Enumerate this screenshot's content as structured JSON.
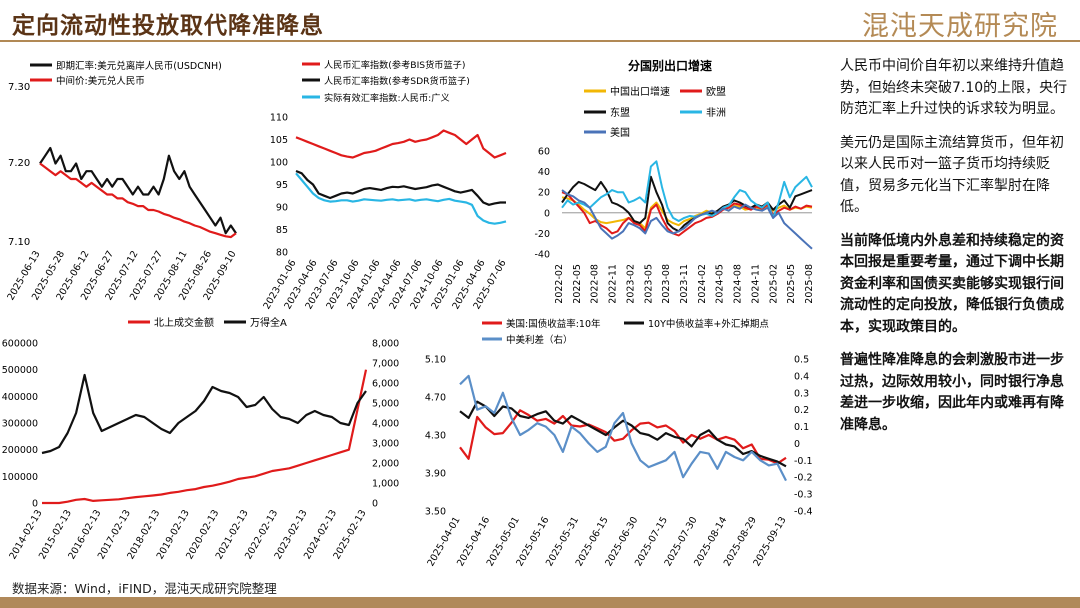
{
  "page": {
    "title": "定向流动性投放取代降准降息",
    "logo": "混沌天成研究院",
    "source": "数据来源：Wind，iFIND，混沌天成研究院整理",
    "paragraphs": [
      "人民币中间价自年初以来维持升值趋势，但始终未突破7.10的上限，央行防范汇率上升过快的诉求较为明显。",
      "美元仍是国际主流结算货币，但年初以来人民币对一篮子货币均持续贬值，贸易多元化当下汇率掣肘在降低。",
      "当前降低境内外息差和持续稳定的资本回报是重要考量，通过下调中长期资金利率和国债买卖能够实现银行间流动性的定向投放，降低银行负债成本，实现政策目的。",
      "普遍性降准降息的会刺激股市进一步过热，边际效用较小，同时银行净息差进一步收缩，因此年内或难再有降准降息。"
    ]
  },
  "chart_data": [
    {
      "id": "fx",
      "type": "line",
      "title": "",
      "legend": [
        "即期汇率:美元兑离岸人民币(USDCNH)",
        "中间价:美元兑人民币"
      ],
      "y_ticks": [
        "7.30",
        "7.20",
        "7.10"
      ],
      "ylim": [
        7.1,
        7.3
      ],
      "x_ticks": [
        "2025-06-13",
        "2025-05-28",
        "2025-06-12",
        "2025-06-27",
        "2025-07-12",
        "2025-07-27",
        "2025-08-11",
        "2025-08-26",
        "2025-09-10"
      ],
      "series": [
        {
          "name": "即期汇率:美元兑离岸人民币(USDCNH)",
          "color": "#111111",
          "values": [
            7.2,
            7.21,
            7.22,
            7.2,
            7.21,
            7.19,
            7.19,
            7.2,
            7.18,
            7.19,
            7.19,
            7.18,
            7.17,
            7.18,
            7.17,
            7.18,
            7.18,
            7.17,
            7.16,
            7.17,
            7.16,
            7.16,
            7.17,
            7.16,
            7.18,
            7.21,
            7.19,
            7.18,
            7.19,
            7.17,
            7.16,
            7.15,
            7.14,
            7.13,
            7.12,
            7.13,
            7.11,
            7.12,
            7.11
          ]
        },
        {
          "name": "中间价:美元兑人民币",
          "color": "#e01b1b",
          "values": [
            7.2,
            7.195,
            7.19,
            7.185,
            7.19,
            7.185,
            7.18,
            7.18,
            7.175,
            7.17,
            7.175,
            7.17,
            7.165,
            7.16,
            7.16,
            7.155,
            7.155,
            7.15,
            7.148,
            7.145,
            7.145,
            7.14,
            7.14,
            7.138,
            7.135,
            7.133,
            7.13,
            7.128,
            7.125,
            7.123,
            7.12,
            7.118,
            7.115,
            7.112,
            7.11,
            7.108,
            7.106,
            7.105,
            7.11
          ]
        }
      ]
    },
    {
      "id": "rmb-index",
      "type": "line",
      "title": "",
      "legend": [
        "人民币汇率指数(参考BIS货币篮子)",
        "人民币汇率指数(参考SDR货币篮子)",
        "实际有效汇率指数:人民币:广义"
      ],
      "y_ticks": [
        "110",
        "105",
        "100",
        "95",
        "90",
        "85",
        "80"
      ],
      "ylim": [
        80,
        110
      ],
      "x_ticks": [
        "2023-01-06",
        "2023-04-06",
        "2023-07-06",
        "2023-10-06",
        "2024-01-06",
        "2024-04-06",
        "2024-07-06",
        "2024-10-06",
        "2025-01-06",
        "2025-04-06",
        "2025-07-06"
      ],
      "series": [
        {
          "name": "人民币汇率指数(参考BIS货币篮子)",
          "color": "#e01b1b",
          "values": [
            105.5,
            105,
            104.5,
            104,
            103.5,
            103,
            102.5,
            102,
            101.5,
            101.2,
            101,
            101.5,
            102,
            102.2,
            102.5,
            103,
            103.5,
            104,
            104.2,
            104.5,
            105,
            104.5,
            104.8,
            105,
            105.5,
            106,
            107,
            106.5,
            106,
            105,
            104,
            105,
            106,
            103,
            102,
            101,
            101.5,
            102
          ]
        },
        {
          "name": "人民币汇率指数(参考SDR货币篮子)",
          "color": "#111111",
          "values": [
            98,
            97.5,
            96,
            95,
            93,
            92.5,
            92,
            92.5,
            93,
            93.2,
            93,
            93.5,
            94,
            94.2,
            94,
            93.8,
            94.2,
            94.5,
            94.4,
            94.6,
            94.3,
            94,
            94.2,
            94.4,
            94.8,
            95,
            94.5,
            94,
            93.5,
            93.2,
            93.5,
            93.8,
            92.5,
            91,
            90.5,
            90.8,
            91,
            91
          ]
        },
        {
          "name": "实际有效汇率指数:人民币:广义",
          "color": "#29b6e4",
          "values": [
            97.5,
            96,
            94.5,
            93,
            92,
            91.5,
            91.2,
            91.3,
            91.5,
            91.5,
            91.2,
            91.4,
            91.7,
            91.6,
            91.5,
            91.4,
            91.6,
            91.7,
            91.5,
            91.6,
            91.7,
            91.4,
            91.6,
            91.7,
            91.5,
            91.3,
            91.6,
            91.8,
            91.4,
            91.2,
            91,
            90.5,
            88,
            87,
            86.5,
            86.3,
            86.5,
            86.8
          ]
        }
      ]
    },
    {
      "id": "exports",
      "type": "line",
      "title": "分国别出口增速",
      "legend": [
        "中国出口增速",
        "欧盟",
        "东盟",
        "非洲",
        "美国"
      ],
      "y_ticks": [
        "60",
        "40",
        "20",
        "0",
        "-20",
        "-40"
      ],
      "ylim": [
        -40,
        60
      ],
      "x_ticks": [
        "2022-02",
        "2022-05",
        "2022-08",
        "2022-11",
        "2023-02",
        "2023-05",
        "2023-08",
        "2023-11",
        "2024-02",
        "2024-05",
        "2024-08",
        "2024-11",
        "2025-02",
        "2025-05",
        "2025-08"
      ],
      "series": [
        {
          "name": "中国出口增速",
          "color": "#f2b705",
          "values": [
            15,
            14,
            12,
            8,
            3,
            -1,
            -6,
            -9,
            -10,
            -9,
            -8,
            -7,
            -5,
            -8,
            -10,
            -15,
            5,
            10,
            2,
            -7,
            -10,
            -12,
            -8,
            -6,
            -3,
            -1,
            2,
            0,
            1,
            5,
            2,
            7,
            6,
            3,
            4,
            5,
            3,
            6,
            2,
            5,
            7,
            3,
            5,
            4,
            6,
            5
          ]
        },
        {
          "name": "欧盟",
          "color": "#e01b1b",
          "values": [
            20,
            18,
            12,
            6,
            0,
            -10,
            -8,
            -12,
            -15,
            -20,
            -18,
            -10,
            -5,
            -10,
            -12,
            -18,
            3,
            8,
            -5,
            -15,
            -20,
            -22,
            -18,
            -14,
            -10,
            -8,
            -5,
            -4,
            -1,
            3,
            5,
            9,
            8,
            5,
            3,
            6,
            4,
            8,
            -2,
            2,
            5,
            3,
            6,
            4,
            7,
            6
          ]
        },
        {
          "name": "东盟",
          "color": "#111111",
          "values": [
            10,
            18,
            25,
            30,
            28,
            25,
            22,
            30,
            22,
            10,
            8,
            5,
            0,
            -8,
            -10,
            -5,
            35,
            20,
            8,
            -10,
            -15,
            -18,
            -12,
            -8,
            -5,
            -2,
            0,
            -1,
            2,
            6,
            8,
            12,
            10,
            7,
            5,
            8,
            6,
            10,
            3,
            8,
            12,
            5,
            16,
            18,
            20,
            22
          ]
        },
        {
          "name": "非洲",
          "color": "#29b6e4",
          "values": [
            5,
            12,
            8,
            10,
            8,
            5,
            10,
            15,
            18,
            22,
            20,
            20,
            10,
            12,
            15,
            10,
            45,
            50,
            25,
            5,
            -5,
            -8,
            -5,
            -3,
            -4,
            -2,
            -1,
            -3,
            0,
            5,
            7,
            15,
            22,
            20,
            12,
            8,
            5,
            10,
            -5,
            10,
            30,
            15,
            25,
            30,
            35,
            25
          ]
        },
        {
          "name": "美国",
          "color": "#4a73b8",
          "values": [
            22,
            18,
            16,
            12,
            10,
            5,
            -5,
            -15,
            -20,
            -25,
            -22,
            -18,
            -10,
            -12,
            -15,
            -20,
            -8,
            -5,
            -12,
            -18,
            -20,
            -18,
            -15,
            -10,
            -5,
            -2,
            0,
            2,
            0,
            4,
            2,
            6,
            4,
            8,
            5,
            3,
            2,
            5,
            -5,
            0,
            -10,
            -15,
            -20,
            -25,
            -30,
            -35
          ]
        }
      ]
    },
    {
      "id": "northbound",
      "type": "line",
      "title": "",
      "legend": [
        "北上成交金额",
        "万得全A"
      ],
      "y_ticks_left": [
        "600000",
        "500000",
        "400000",
        "300000",
        "200000",
        "100000",
        "0"
      ],
      "y_ticks_right": [
        "8,000",
        "7,000",
        "6,000",
        "5,000",
        "4,000",
        "3,000",
        "2,000",
        "1,000",
        "0"
      ],
      "ylim_left": [
        0,
        600000
      ],
      "ylim_right": [
        0,
        8000
      ],
      "x_ticks": [
        "2014-02-13",
        "2015-02-13",
        "2016-02-13",
        "2017-02-13",
        "2018-02-13",
        "2019-02-13",
        "2020-02-13",
        "2021-02-13",
        "2022-02-13",
        "2023-02-13",
        "2024-02-13",
        "2025-02-13"
      ],
      "series": [
        {
          "name": "北上成交金额",
          "color": "#e01b1b",
          "axis": "left",
          "values": [
            0,
            0,
            0,
            5000,
            12000,
            15000,
            8000,
            10000,
            12000,
            14000,
            18000,
            22000,
            25000,
            28000,
            32000,
            38000,
            42000,
            48000,
            52000,
            60000,
            65000,
            72000,
            80000,
            90000,
            95000,
            100000,
            110000,
            120000,
            125000,
            130000,
            140000,
            150000,
            160000,
            170000,
            180000,
            190000,
            200000,
            350000,
            500000
          ]
        },
        {
          "name": "万得全A",
          "color": "#111111",
          "axis": "right",
          "values": [
            2500,
            2600,
            2800,
            3500,
            4500,
            6400,
            4500,
            3600,
            3800,
            4000,
            4200,
            4400,
            4300,
            4000,
            3700,
            3500,
            4000,
            4300,
            4600,
            5100,
            5800,
            5600,
            5500,
            5300,
            4800,
            4900,
            5300,
            4700,
            4300,
            4200,
            4000,
            4400,
            4600,
            4400,
            4300,
            4000,
            3900,
            5000,
            5600
          ]
        }
      ]
    },
    {
      "id": "yields",
      "type": "line",
      "title": "",
      "legend": [
        "美国:国债收益率:10年",
        "10Y中债收益率+外汇掉期点",
        "中美利差（右）"
      ],
      "y_ticks_left": [
        "5.10",
        "4.70",
        "4.30",
        "3.90",
        "3.50"
      ],
      "y_ticks_right": [
        "0.5",
        "0.4",
        "0.3",
        "0.2",
        "0.1",
        "0",
        "-0.1",
        "-0.2",
        "-0.3",
        "-0.4"
      ],
      "ylim_left": [
        3.5,
        5.1
      ],
      "ylim_right": [
        -0.4,
        0.5
      ],
      "x_ticks": [
        "2025-04-01",
        "2025-04-16",
        "2025-05-01",
        "2025-05-16",
        "2025-05-31",
        "2025-06-15",
        "2025-06-30",
        "2025-07-15",
        "2025-07-30",
        "2025-08-14",
        "2025-08-29",
        "2025-09-13"
      ],
      "series": [
        {
          "name": "美国:国债收益率:10年",
          "color": "#e01b1b",
          "axis": "left",
          "values": [
            4.17,
            4.05,
            4.49,
            4.38,
            4.31,
            4.32,
            4.43,
            4.56,
            4.51,
            4.45,
            4.47,
            4.42,
            4.5,
            4.4,
            4.39,
            4.41,
            4.37,
            4.33,
            4.24,
            4.26,
            4.35,
            4.42,
            4.43,
            4.38,
            4.4,
            4.34,
            4.22,
            4.3,
            4.26,
            4.3,
            4.25,
            4.28,
            4.25,
            4.16,
            4.2,
            4.05,
            4.04,
            4.0,
            4.06
          ]
        },
        {
          "name": "10Y中债收益率+外汇掉期点",
          "color": "#111111",
          "axis": "left",
          "values": [
            4.55,
            4.48,
            4.65,
            4.6,
            4.5,
            4.6,
            4.58,
            4.5,
            4.48,
            4.52,
            4.55,
            4.45,
            4.42,
            4.5,
            4.45,
            4.4,
            4.35,
            4.3,
            4.38,
            4.45,
            4.4,
            4.32,
            4.3,
            4.25,
            4.32,
            4.28,
            4.26,
            4.18,
            4.3,
            4.35,
            4.25,
            4.2,
            4.18,
            4.1,
            4.13,
            4.08,
            4.05,
            4.02,
            3.97
          ]
        },
        {
          "name": "中美利差（右）",
          "color": "#5b8fc8",
          "axis": "right",
          "values": [
            0.35,
            0.4,
            0.2,
            0.22,
            0.18,
            0.3,
            0.15,
            0.05,
            0.08,
            0.12,
            0.1,
            0.05,
            -0.05,
            0.1,
            0.06,
            0.0,
            -0.05,
            -0.02,
            0.12,
            0.18,
            0.0,
            -0.1,
            -0.14,
            -0.12,
            -0.1,
            -0.05,
            -0.2,
            -0.12,
            -0.05,
            -0.06,
            -0.15,
            -0.05,
            -0.08,
            -0.1,
            -0.05,
            -0.1,
            -0.13,
            -0.12,
            -0.22
          ]
        }
      ]
    }
  ]
}
